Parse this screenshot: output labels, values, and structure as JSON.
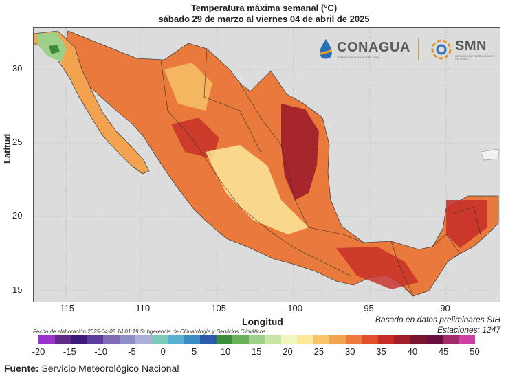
{
  "title": {
    "line1": "Temperatura máxima semanal (°C)",
    "line2": "sábado 29 de marzo al viernes 04 de abril de 2025"
  },
  "axes": {
    "ylabel": "Latitud",
    "xlabel": "Longitud",
    "yticks": [
      "30",
      "25",
      "20",
      "15"
    ],
    "xticks": [
      "-115",
      "-110",
      "-105",
      "-100",
      "-95",
      "-90"
    ]
  },
  "logos": {
    "conagua": "CONAGUA",
    "conagua_sub": "COMISIÓN NACIONAL DEL AGUA",
    "smn": "SMN",
    "smn_sub": "SERVICIO METEOROLÓGICO NACIONAL"
  },
  "notes": {
    "basis": "Basado en datos preliminares SIH",
    "stations": "Estaciones:  1247",
    "stamp": "Fecha de elaboración 2025-04-05 14:01:19 Subgerencia de Climatología y Servicios Climáticos"
  },
  "colorbar": {
    "colors": [
      "#9933cc",
      "#5e2a84",
      "#3d1a78",
      "#5a3d99",
      "#7f6bb3",
      "#8f8fc6",
      "#aab0d6",
      "#7ec8b8",
      "#5aaed0",
      "#3d8ac2",
      "#2d5aa6",
      "#3c8a3c",
      "#6bb05a",
      "#9fd08a",
      "#c7e6a6",
      "#f1f5c0",
      "#fce89a",
      "#f7c66a",
      "#f3a24f",
      "#ec7a3a",
      "#e0512b",
      "#c62c25",
      "#a01d2a",
      "#7a1530",
      "#6a1040",
      "#a02a6a",
      "#d040a0"
    ],
    "ticks": [
      "-20",
      "-15",
      "-10",
      "-5",
      "0",
      "5",
      "10",
      "15",
      "20",
      "25",
      "30",
      "35",
      "40",
      "45",
      "50"
    ]
  },
  "source": {
    "label": "Fuente:",
    "text": " Servicio Meteorológico Nacional"
  }
}
